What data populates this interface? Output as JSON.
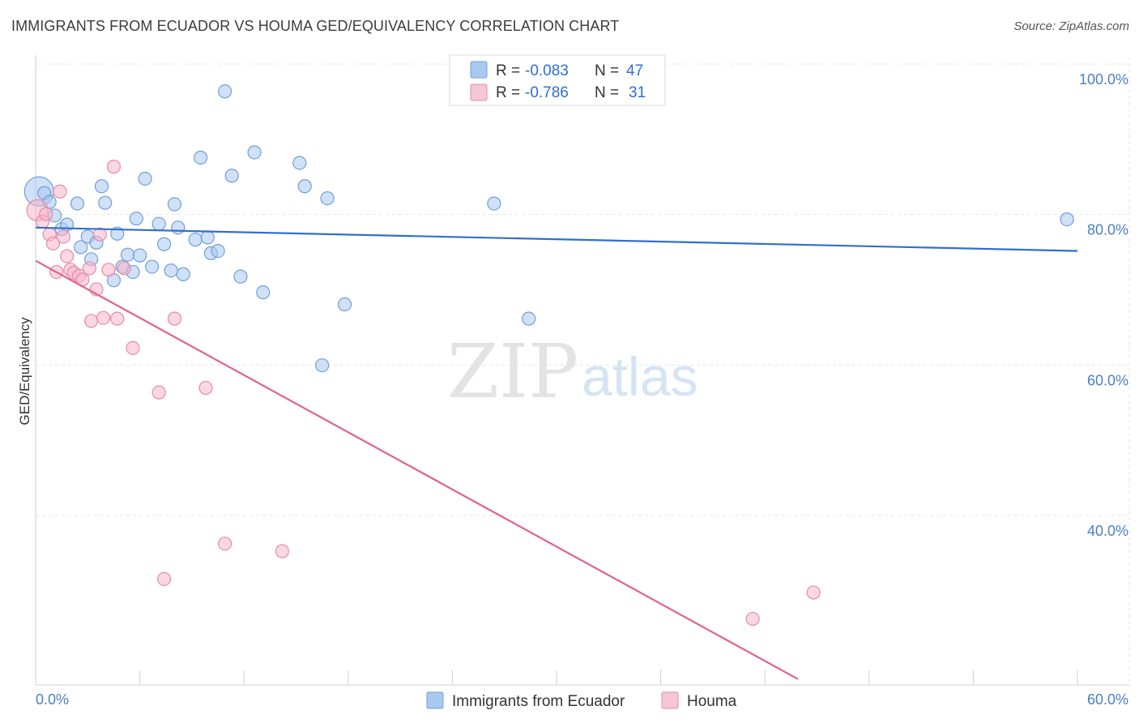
{
  "title": "IMMIGRANTS FROM ECUADOR VS HOUMA GED/EQUIVALENCY CORRELATION CHART",
  "source": "Source: ZipAtlas.com",
  "watermark": {
    "zip": "ZIP",
    "atlas": "atlas"
  },
  "legend": {
    "rows": [
      {
        "r_label": "R =",
        "r_value": "-0.083",
        "n_label": "N =",
        "n_value": "47",
        "color": "#a9c8f0"
      },
      {
        "r_label": "R =",
        "r_value": "-0.786",
        "n_label": "N =",
        "n_value": "31",
        "color": "#f5b6cb"
      }
    ]
  },
  "bottom_legend": [
    {
      "label": "Immigrants from Ecuador",
      "color": "#a9c8f0"
    },
    {
      "label": "Houma",
      "color": "#f5b6cb"
    }
  ],
  "chart_data": {
    "type": "scatter",
    "title": "IMMIGRANTS FROM ECUADOR VS HOUMA GED/EQUIVALENCY CORRELATION CHART",
    "xlabel": "",
    "ylabel": "GED/Equivalency",
    "xlim": [
      0,
      60
    ],
    "ylim": [
      20,
      103
    ],
    "x_tick_labels": [
      "0.0%",
      "60.0%"
    ],
    "y_ticks": [
      40,
      60,
      80,
      100
    ],
    "y_tick_labels": [
      "40.0%",
      "60.0%",
      "80.0%",
      "100.0%"
    ],
    "grid": true,
    "legend_position": "top-center",
    "series": [
      {
        "name": "Immigrants from Ecuador",
        "color": "#6f9fd8",
        "fill": "#a9c8f0",
        "trend": {
          "x0": 0,
          "y0": 80.2,
          "x1": 60,
          "y1": 77.1
        },
        "points": [
          [
            0.2,
            85.0,
            3
          ],
          [
            0.5,
            84.8,
            1
          ],
          [
            0.8,
            83.6,
            1
          ],
          [
            1.1,
            81.8,
            1
          ],
          [
            1.5,
            80.0,
            1
          ],
          [
            1.8,
            80.6,
            1
          ],
          [
            2.4,
            83.4,
            1
          ],
          [
            2.6,
            77.6,
            1
          ],
          [
            3.0,
            79.0,
            1
          ],
          [
            3.2,
            76.0,
            1
          ],
          [
            3.5,
            78.2,
            1
          ],
          [
            3.8,
            85.7,
            1
          ],
          [
            4.0,
            83.5,
            1
          ],
          [
            4.5,
            73.2,
            1
          ],
          [
            4.7,
            79.4,
            1
          ],
          [
            5.0,
            75.0,
            1
          ],
          [
            5.3,
            76.6,
            1
          ],
          [
            5.6,
            74.3,
            1
          ],
          [
            5.8,
            81.4,
            1
          ],
          [
            6.0,
            76.5,
            1
          ],
          [
            6.3,
            86.7,
            1
          ],
          [
            6.7,
            75.0,
            1
          ],
          [
            7.1,
            80.7,
            1
          ],
          [
            7.4,
            78.0,
            1
          ],
          [
            7.8,
            74.5,
            1
          ],
          [
            8.0,
            83.3,
            1
          ],
          [
            8.2,
            80.2,
            1
          ],
          [
            8.5,
            74.0,
            1
          ],
          [
            9.2,
            78.6,
            1
          ],
          [
            9.5,
            89.5,
            1
          ],
          [
            9.9,
            78.9,
            1
          ],
          [
            10.1,
            76.8,
            1
          ],
          [
            10.5,
            77.1,
            1
          ],
          [
            10.9,
            98.3,
            1
          ],
          [
            11.3,
            87.1,
            1
          ],
          [
            11.8,
            73.7,
            1
          ],
          [
            12.6,
            90.2,
            1
          ],
          [
            13.1,
            71.6,
            1
          ],
          [
            15.2,
            88.8,
            1
          ],
          [
            15.5,
            85.7,
            1
          ],
          [
            16.5,
            61.9,
            1
          ],
          [
            16.8,
            84.1,
            1
          ],
          [
            17.8,
            70.0,
            1
          ],
          [
            26.4,
            83.4,
            1
          ],
          [
            28.4,
            68.1,
            1
          ],
          [
            59.4,
            81.3,
            1
          ]
        ]
      },
      {
        "name": "Houma",
        "color": "#e88aa8",
        "fill": "#f5b6cb",
        "trend": {
          "x0": 0,
          "y0": 75.8,
          "x1": 43.9,
          "y1": 20.2
        },
        "points": [
          [
            0.1,
            82.5,
            2
          ],
          [
            0.4,
            81.0,
            1
          ],
          [
            0.6,
            82.0,
            1
          ],
          [
            0.8,
            79.3,
            1
          ],
          [
            1.0,
            78.1,
            1
          ],
          [
            1.2,
            74.3,
            1
          ],
          [
            1.4,
            85.0,
            1
          ],
          [
            1.6,
            79.0,
            1
          ],
          [
            1.8,
            76.4,
            1
          ],
          [
            2.0,
            74.6,
            1
          ],
          [
            2.2,
            74.2,
            1
          ],
          [
            2.5,
            73.8,
            1
          ],
          [
            2.7,
            73.3,
            1
          ],
          [
            3.1,
            74.8,
            1
          ],
          [
            3.2,
            67.8,
            1
          ],
          [
            3.5,
            72.0,
            1
          ],
          [
            3.7,
            79.3,
            1
          ],
          [
            3.9,
            68.2,
            1
          ],
          [
            4.2,
            74.6,
            1
          ],
          [
            4.5,
            88.3,
            1
          ],
          [
            4.7,
            68.1,
            1
          ],
          [
            5.1,
            74.8,
            1
          ],
          [
            5.6,
            64.2,
            1
          ],
          [
            7.1,
            58.3,
            1
          ],
          [
            7.4,
            33.5,
            1
          ],
          [
            8.0,
            68.1,
            1
          ],
          [
            9.8,
            58.9,
            1
          ],
          [
            10.9,
            38.2,
            1
          ],
          [
            14.2,
            37.2,
            1
          ],
          [
            41.3,
            28.2,
            1
          ],
          [
            44.8,
            31.7,
            1
          ]
        ]
      }
    ]
  }
}
